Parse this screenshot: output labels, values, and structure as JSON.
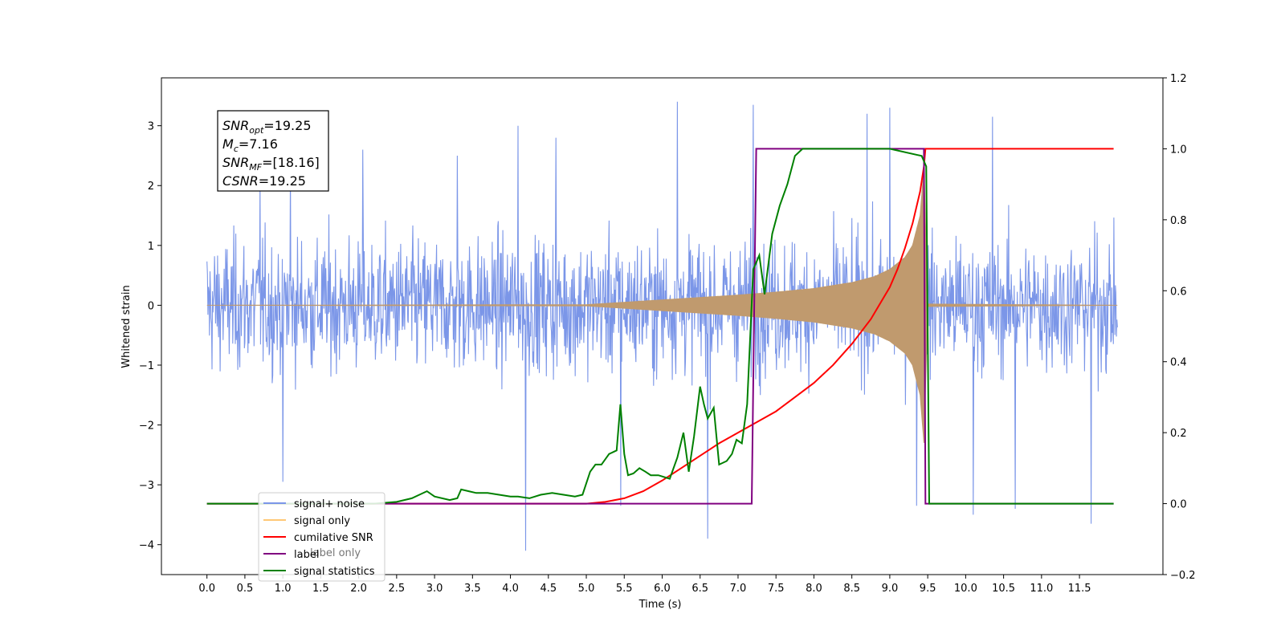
{
  "chart_data": {
    "type": "line",
    "xlabel": "Time (s)",
    "ylabel_left": "Whitened strain",
    "xlim": [
      -0.6,
      12.6
    ],
    "ylim_left": [
      -4.5,
      3.8
    ],
    "ylim_right": [
      -0.2,
      1.2
    ],
    "x_ticks": [
      0.0,
      0.5,
      1.0,
      1.5,
      2.0,
      2.5,
      3.0,
      3.5,
      4.0,
      4.5,
      5.0,
      5.5,
      6.0,
      6.5,
      7.0,
      7.5,
      8.0,
      8.5,
      9.0,
      9.5,
      10.0,
      10.5,
      11.0,
      11.5
    ],
    "x_tick_labels": [
      "0.0",
      "0.5",
      "1.0",
      "1.5",
      "2.0",
      "2.5",
      "3.0",
      "3.5",
      "4.0",
      "4.5",
      "5.0",
      "5.5",
      "6.0",
      "6.5",
      "7.0",
      "7.5",
      "8.0",
      "8.5",
      "9.0",
      "9.5",
      "10.0",
      "10.5",
      "11.0",
      "11.5"
    ],
    "y_ticks_left": [
      -4,
      -3,
      -2,
      -1,
      0,
      1,
      2,
      3
    ],
    "y_tick_labels_left": [
      "−4",
      "−3",
      "−2",
      "−1",
      "0",
      "1",
      "2",
      "3"
    ],
    "y_ticks_right": [
      -0.2,
      0.0,
      0.2,
      0.4,
      0.6,
      0.8,
      1.0,
      1.2
    ],
    "y_tick_labels_right": [
      "−0.2",
      "0.0",
      "0.2",
      "0.4",
      "0.6",
      "0.8",
      "1.0",
      "1.2"
    ],
    "grid": false,
    "legend_placement": "lower-left",
    "stats_box": {
      "lines": [
        {
          "main": "SNR",
          "sub": "opt",
          "value": "=19.25"
        },
        {
          "main": "M",
          "sub": "c",
          "value": "=7.16"
        },
        {
          "main": "SNR",
          "sub": "MF",
          "value": "=[18.16]"
        },
        {
          "main": "CSNR",
          "sub": "",
          "value": "=19.25"
        }
      ]
    },
    "series": [
      {
        "name": "signal+ noise",
        "axis": "left",
        "color": "#7b96e8",
        "style": "noise band",
        "x_range": [
          0.0,
          12.0
        ],
        "noise_amplitude_typical": 1.3,
        "peak_spikes": [
          [
            0.7,
            2.1
          ],
          [
            1.0,
            -2.95
          ],
          [
            1.1,
            2.3
          ],
          [
            2.05,
            2.6
          ],
          [
            3.3,
            2.5
          ],
          [
            4.1,
            3.0
          ],
          [
            4.2,
            -4.1
          ],
          [
            4.6,
            2.8
          ],
          [
            5.45,
            -3.35
          ],
          [
            6.2,
            3.4
          ],
          [
            6.6,
            -3.9
          ],
          [
            7.2,
            3.35
          ],
          [
            8.7,
            3.2
          ],
          [
            9.0,
            3.3
          ],
          [
            9.35,
            -3.35
          ],
          [
            10.1,
            -3.5
          ],
          [
            10.35,
            3.15
          ],
          [
            10.65,
            -3.4
          ],
          [
            11.65,
            -3.65
          ]
        ]
      },
      {
        "name": "signal only",
        "axis": "left",
        "color": "#c09a6e",
        "style": "chirp envelope",
        "envelope": {
          "x": [
            0.0,
            5.0,
            5.5,
            6.0,
            6.5,
            7.0,
            7.5,
            8.0,
            8.5,
            8.8,
            9.0,
            9.2,
            9.3,
            9.4,
            9.45,
            9.5,
            12.0
          ],
          "y": [
            0.0,
            0.01,
            0.05,
            0.09,
            0.13,
            0.17,
            0.22,
            0.28,
            0.38,
            0.48,
            0.6,
            0.8,
            1.0,
            1.5,
            2.3,
            0.02,
            0.0
          ]
        }
      },
      {
        "name": "cumilative SNR",
        "axis": "right",
        "color": "#ff0000",
        "x": [
          0.0,
          4.0,
          4.5,
          5.0,
          5.25,
          5.5,
          5.75,
          6.0,
          6.25,
          6.5,
          6.75,
          7.0,
          7.25,
          7.5,
          7.75,
          8.0,
          8.25,
          8.5,
          8.75,
          9.0,
          9.1,
          9.2,
          9.3,
          9.4,
          9.45,
          9.47,
          11.95
        ],
        "y": [
          0.0,
          0.0,
          0.0,
          0.0,
          0.005,
          0.015,
          0.035,
          0.065,
          0.1,
          0.135,
          0.17,
          0.2,
          0.23,
          0.26,
          0.3,
          0.34,
          0.39,
          0.45,
          0.52,
          0.61,
          0.66,
          0.72,
          0.79,
          0.88,
          0.95,
          1.0,
          1.0
        ]
      },
      {
        "name": "label",
        "axis": "right",
        "color": "#800080",
        "x": [
          0.0,
          7.18,
          7.24,
          9.45,
          9.47,
          11.95
        ],
        "y": [
          0.0,
          0.0,
          1.0,
          1.0,
          0.0,
          0.0
        ]
      },
      {
        "name": "label only",
        "axis": "right",
        "color": "#b9a090",
        "hidden_in_plot": true
      },
      {
        "name": "signal statistics",
        "axis": "right",
        "color": "#008000",
        "x": [
          0.0,
          2.2,
          2.5,
          2.7,
          2.8,
          2.9,
          3.0,
          3.2,
          3.3,
          3.35,
          3.45,
          3.55,
          3.7,
          3.85,
          4.0,
          4.1,
          4.25,
          4.4,
          4.55,
          4.7,
          4.85,
          4.95,
          5.05,
          5.12,
          5.2,
          5.3,
          5.4,
          5.45,
          5.5,
          5.55,
          5.62,
          5.7,
          5.78,
          5.85,
          5.95,
          6.1,
          6.2,
          6.28,
          6.35,
          6.42,
          6.5,
          6.55,
          6.6,
          6.68,
          6.75,
          6.85,
          6.92,
          6.98,
          7.05,
          7.12,
          7.2,
          7.28,
          7.35,
          7.45,
          7.55,
          7.65,
          7.75,
          7.85,
          8.0,
          9.0,
          9.42,
          9.48,
          9.52,
          11.95
        ],
        "y": [
          0.0,
          0.0,
          0.005,
          0.015,
          0.025,
          0.035,
          0.02,
          0.01,
          0.015,
          0.04,
          0.035,
          0.03,
          0.03,
          0.025,
          0.02,
          0.02,
          0.015,
          0.025,
          0.03,
          0.025,
          0.02,
          0.025,
          0.09,
          0.11,
          0.11,
          0.14,
          0.15,
          0.28,
          0.14,
          0.08,
          0.085,
          0.1,
          0.09,
          0.08,
          0.08,
          0.07,
          0.13,
          0.2,
          0.09,
          0.19,
          0.33,
          0.28,
          0.24,
          0.27,
          0.11,
          0.12,
          0.14,
          0.18,
          0.17,
          0.28,
          0.66,
          0.7,
          0.59,
          0.76,
          0.84,
          0.9,
          0.98,
          1.0,
          1.0,
          1.0,
          0.98,
          0.95,
          0.0,
          0.0
        ]
      }
    ]
  }
}
